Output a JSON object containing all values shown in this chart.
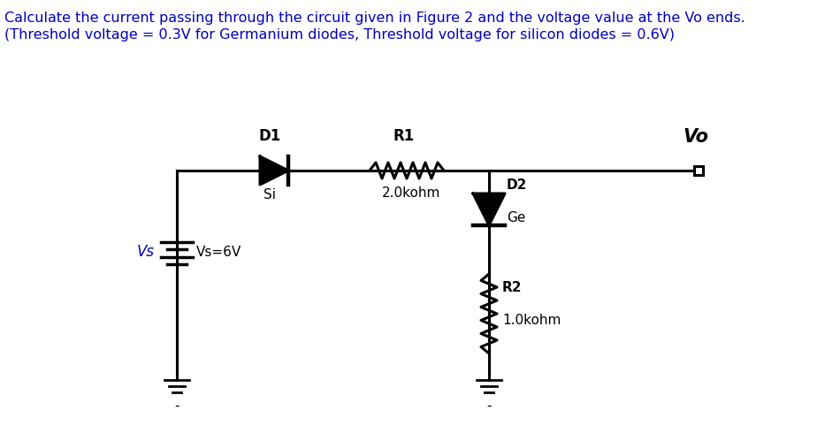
{
  "title_line1": "Calculate the current passing through the circuit given in Figure 2 and the voltage value at the Vo ends.",
  "title_line2": "(Threshold voltage = 0.3V for Germanium diodes, Threshold voltage for silicon diodes = 0.6V)",
  "title_color": "#0000bb",
  "bg_color": "#ffffff",
  "label_D1": "D1",
  "label_D2": "D2",
  "label_R1": "R1",
  "label_R2": "R2",
  "label_Si": "Si",
  "label_Ge": "Ge",
  "label_R1_val": "2.0kohm",
  "label_R2_val": "1.0kohm",
  "label_Vs": "Vs",
  "label_Vs_val": "Vs=6V",
  "label_Vo": "Vo",
  "fig_w": 9.33,
  "fig_h": 5.07,
  "dpi": 100
}
